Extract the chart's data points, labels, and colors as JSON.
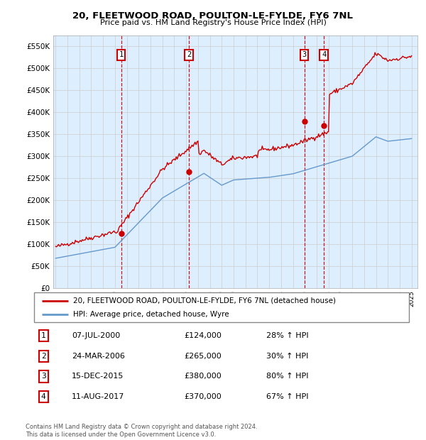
{
  "title": "20, FLEETWOOD ROAD, POULTON-LE-FYLDE, FY6 7NL",
  "subtitle": "Price paid vs. HM Land Registry's House Price Index (HPI)",
  "ylabel_ticks": [
    "£0",
    "£50K",
    "£100K",
    "£150K",
    "£200K",
    "£250K",
    "£300K",
    "£350K",
    "£400K",
    "£450K",
    "£500K",
    "£550K"
  ],
  "ytick_values": [
    0,
    50000,
    100000,
    150000,
    200000,
    250000,
    300000,
    350000,
    400000,
    450000,
    500000,
    550000
  ],
  "ylim": [
    0,
    575000
  ],
  "sale_year_floats": [
    2000.52,
    2006.23,
    2015.96,
    2017.61
  ],
  "sale_prices": [
    124000,
    265000,
    380000,
    370000
  ],
  "sale_labels": [
    "1",
    "2",
    "3",
    "4"
  ],
  "legend_line1": "20, FLEETWOOD ROAD, POULTON-LE-FYLDE, FY6 7NL (detached house)",
  "legend_line2": "HPI: Average price, detached house, Wyre",
  "footer": "Contains HM Land Registry data © Crown copyright and database right 2024.\nThis data is licensed under the Open Government Licence v3.0.",
  "table_rows": [
    [
      "1",
      "07-JUL-2000",
      "£124,000",
      "28% ↑ HPI"
    ],
    [
      "2",
      "24-MAR-2006",
      "£265,000",
      "30% ↑ HPI"
    ],
    [
      "3",
      "15-DEC-2015",
      "£380,000",
      "80% ↑ HPI"
    ],
    [
      "4",
      "11-AUG-2017",
      "£370,000",
      "67% ↑ HPI"
    ]
  ],
  "red_color": "#cc0000",
  "blue_color": "#6699cc",
  "bg_color": "#ddeeff",
  "grid_color": "#cccccc"
}
